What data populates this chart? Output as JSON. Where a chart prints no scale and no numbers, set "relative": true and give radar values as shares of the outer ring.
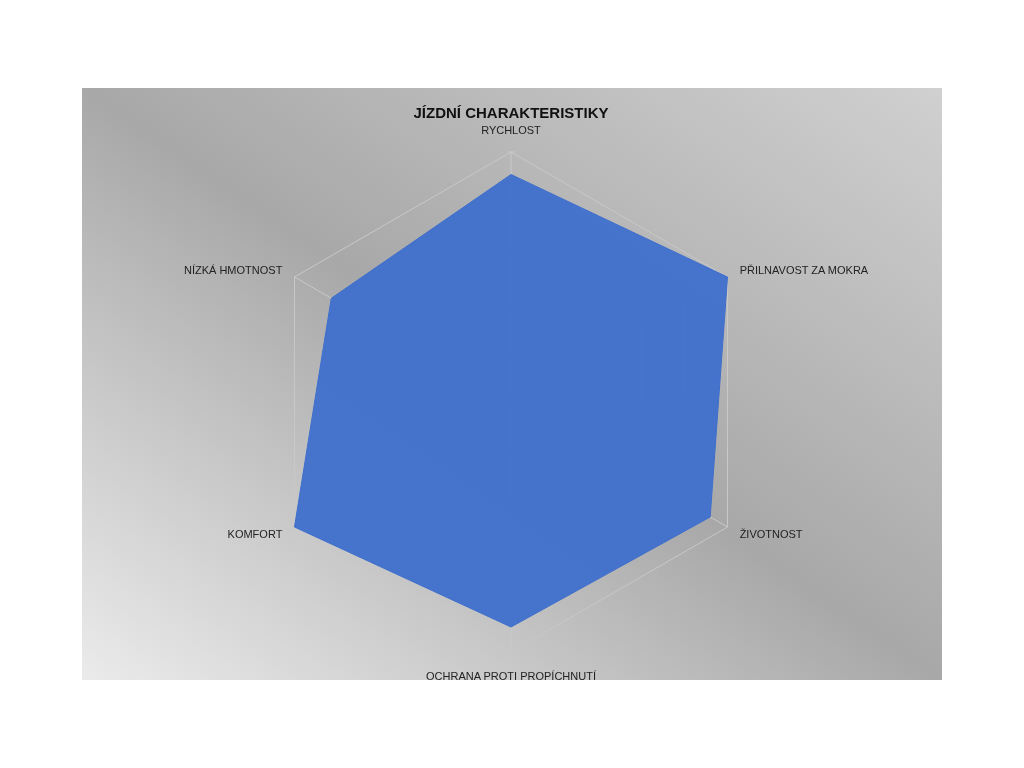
{
  "chart_data": {
    "type": "radar",
    "title": "JÍZDNÍ CHARAKTERISTIKY",
    "relative": true,
    "grid": true,
    "categories": [
      "RYCHLOST",
      "PŘILNAVOST ZA MOKRA",
      "ŽIVOTNOST",
      "OCHRANA PROTI PROPÍCHNUTÍ",
      "KOMFORT",
      "NÍZKÁ HMOTNOST"
    ],
    "series": [
      {
        "color": "#3f6fcc",
        "values": [
          0.91,
          1,
          0.92,
          0.9,
          1,
          0.83
        ]
      }
    ]
  }
}
